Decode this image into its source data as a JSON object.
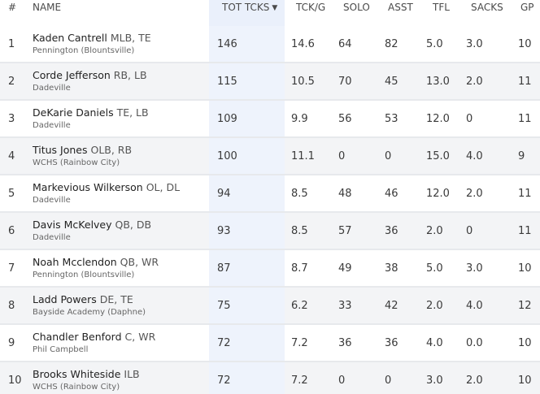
{
  "headers": {
    "num": "#",
    "name": "NAME",
    "tot": "TOT TCKS",
    "tckg": "TCK/G",
    "solo": "SOLO",
    "asst": "ASST",
    "tfl": "TFL",
    "sacks": "SACKS",
    "gp": "GP",
    "sort_icon": "▼"
  },
  "rows": [
    {
      "rank": "1",
      "name": "Kaden Cantrell",
      "pos": "MLB, TE",
      "school": "Pennington (Blountsville)",
      "tot": "146",
      "tckg": "14.6",
      "solo": "64",
      "asst": "82",
      "tfl": "5.0",
      "sacks": "3.0",
      "gp": "10"
    },
    {
      "rank": "2",
      "name": "Corde Jefferson",
      "pos": "RB, LB",
      "school": "Dadeville",
      "tot": "115",
      "tckg": "10.5",
      "solo": "70",
      "asst": "45",
      "tfl": "13.0",
      "sacks": "2.0",
      "gp": "11"
    },
    {
      "rank": "3",
      "name": "DeKarie Daniels",
      "pos": "TE, LB",
      "school": "Dadeville",
      "tot": "109",
      "tckg": "9.9",
      "solo": "56",
      "asst": "53",
      "tfl": "12.0",
      "sacks": "0",
      "gp": "11"
    },
    {
      "rank": "4",
      "name": "Titus Jones",
      "pos": "OLB, RB",
      "school": "WCHS (Rainbow City)",
      "tot": "100",
      "tckg": "11.1",
      "solo": "0",
      "asst": "0",
      "tfl": "15.0",
      "sacks": "4.0",
      "gp": "9"
    },
    {
      "rank": "5",
      "name": "Markevious Wilkerson",
      "pos": "OL, DL",
      "school": "Dadeville",
      "tot": "94",
      "tckg": "8.5",
      "solo": "48",
      "asst": "46",
      "tfl": "12.0",
      "sacks": "2.0",
      "gp": "11"
    },
    {
      "rank": "6",
      "name": "Davis McKelvey",
      "pos": "QB, DB",
      "school": "Dadeville",
      "tot": "93",
      "tckg": "8.5",
      "solo": "57",
      "asst": "36",
      "tfl": "2.0",
      "sacks": "0",
      "gp": "11"
    },
    {
      "rank": "7",
      "name": "Noah Mcclendon",
      "pos": "QB, WR",
      "school": "Pennington (Blountsville)",
      "tot": "87",
      "tckg": "8.7",
      "solo": "49",
      "asst": "38",
      "tfl": "5.0",
      "sacks": "3.0",
      "gp": "10"
    },
    {
      "rank": "8",
      "name": "Ladd Powers",
      "pos": "DE, TE",
      "school": "Bayside Academy (Daphne)",
      "tot": "75",
      "tckg": "6.2",
      "solo": "33",
      "asst": "42",
      "tfl": "2.0",
      "sacks": "4.0",
      "gp": "12"
    },
    {
      "rank": "9",
      "name": "Chandler Benford",
      "pos": "C, WR",
      "school": "Phil Campbell",
      "tot": "72",
      "tckg": "7.2",
      "solo": "36",
      "asst": "36",
      "tfl": "4.0",
      "sacks": "0.0",
      "gp": "10"
    },
    {
      "rank": "10",
      "name": "Brooks Whiteside",
      "pos": "ILB",
      "school": "WCHS (Rainbow City)",
      "tot": "72",
      "tckg": "7.2",
      "solo": "0",
      "asst": "0",
      "tfl": "3.0",
      "sacks": "2.0",
      "gp": "10"
    }
  ]
}
